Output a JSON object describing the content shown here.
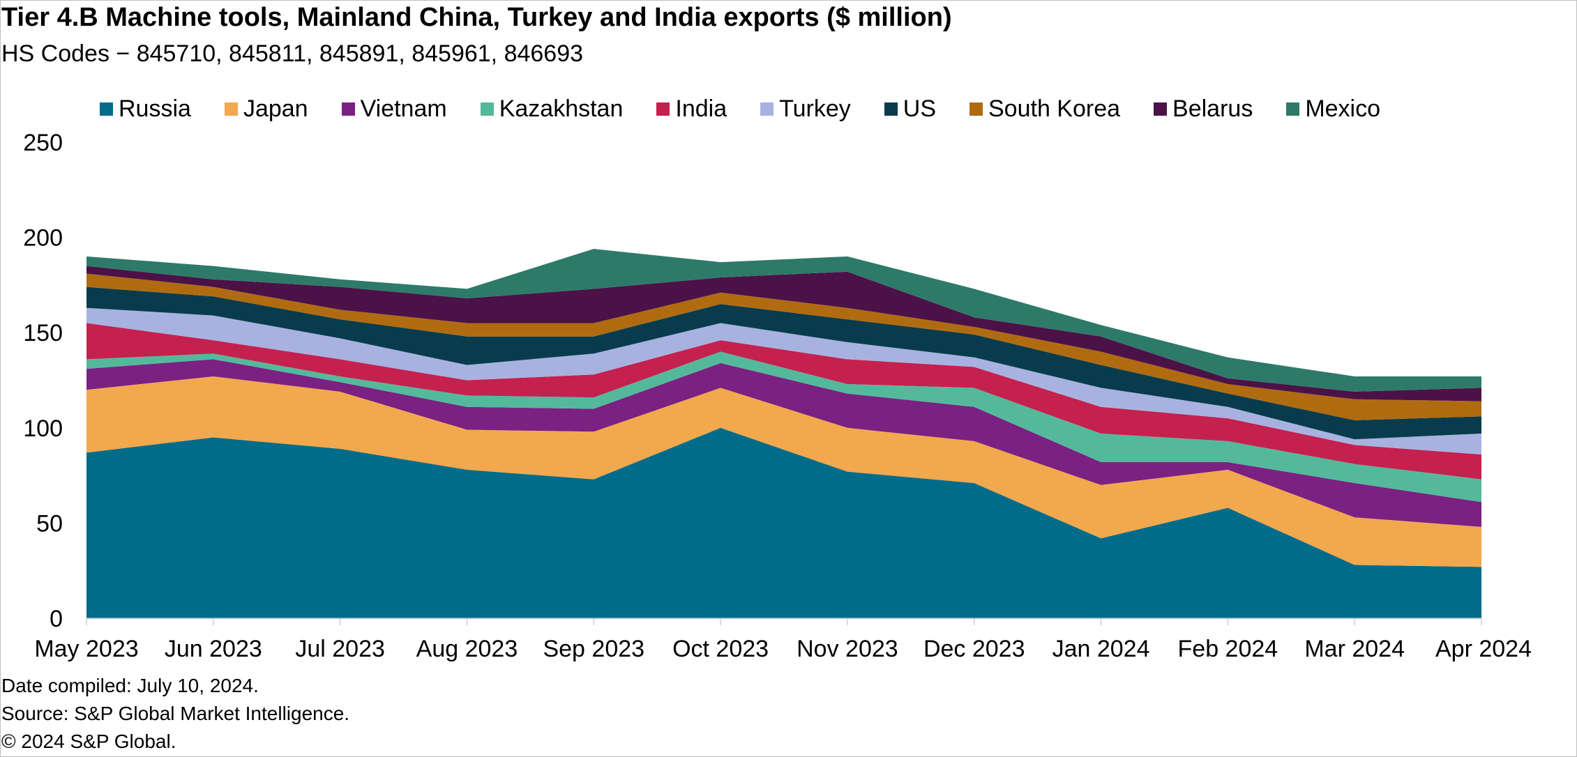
{
  "title": "Tier 4.B Machine tools, Mainland China, Turkey and India exports ($ million)",
  "subtitle": "HS Codes − 845710, 845811, 845891, 845961, 846693",
  "footer": {
    "date_compiled": "Date compiled: July 10, 2024.",
    "source": "Source: S&P Global Market Intelligence.",
    "copyright": "© 2024 S&P Global."
  },
  "chart_data": {
    "type": "area",
    "stacked": true,
    "categories": [
      "May 2023",
      "Jun 2023",
      "Jul 2023",
      "Aug 2023",
      "Sep 2023",
      "Oct 2023",
      "Nov 2023",
      "Dec 2023",
      "Jan 2024",
      "Feb 2024",
      "Mar 2024",
      "Apr 2024"
    ],
    "ylim": [
      0,
      250
    ],
    "yticks": [
      0,
      50,
      100,
      150,
      200,
      250
    ],
    "grid": false,
    "legend_position": "top",
    "series": [
      {
        "name": "Russia",
        "color": "#006c8a",
        "values": [
          87,
          95,
          89,
          78,
          73,
          100,
          77,
          71,
          42,
          58,
          28,
          27
        ]
      },
      {
        "name": "Japan",
        "color": "#f2a84d",
        "values": [
          33,
          32,
          30,
          21,
          25,
          21,
          23,
          22,
          28,
          20,
          25,
          21
        ]
      },
      {
        "name": "Vietnam",
        "color": "#7a2182",
        "values": [
          11,
          9,
          5,
          12,
          12,
          13,
          18,
          18,
          12,
          4,
          18,
          13
        ]
      },
      {
        "name": "Kazakhstan",
        "color": "#54b99b",
        "values": [
          5,
          3,
          3,
          6,
          6,
          6,
          5,
          10,
          15,
          11,
          10,
          12
        ]
      },
      {
        "name": "India",
        "color": "#c4214f",
        "values": [
          19,
          7,
          9,
          8,
          12,
          6,
          13,
          11,
          14,
          12,
          10,
          13
        ]
      },
      {
        "name": "Turkey",
        "color": "#a8b2e0",
        "values": [
          8,
          13,
          11,
          8,
          11,
          9,
          9,
          5,
          10,
          6,
          3,
          11
        ]
      },
      {
        "name": "US",
        "color": "#083c4c",
        "values": [
          11,
          10,
          10,
          15,
          9,
          10,
          12,
          12,
          12,
          7,
          10,
          9
        ]
      },
      {
        "name": "South Korea",
        "color": "#b06b11",
        "values": [
          7,
          5,
          5,
          7,
          7,
          6,
          6,
          4,
          7,
          5,
          11,
          8
        ]
      },
      {
        "name": "Belarus",
        "color": "#4b1247",
        "values": [
          4,
          4,
          12,
          13,
          18,
          8,
          19,
          5,
          8,
          3,
          4,
          7
        ]
      },
      {
        "name": "Mexico",
        "color": "#2e7a68",
        "values": [
          5,
          7,
          4,
          5,
          21,
          8,
          8,
          15,
          6,
          11,
          8,
          6
        ]
      }
    ]
  }
}
